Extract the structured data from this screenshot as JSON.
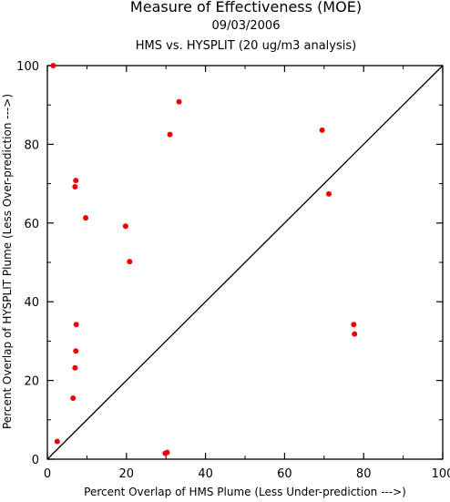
{
  "chart_data": {
    "type": "scatter",
    "title": "Measure of Effectiveness (MOE)",
    "date": "09/03/2006",
    "subtitle": "HMS vs. HYSPLIT  (20 ug/m3 analysis)",
    "xlabel": "Percent Overlap of HMS Plume (Less Under-prediction --->)",
    "ylabel": "Percent Overlap of HYSPLIT Plume (Less Over-prediction --->)",
    "xlim": [
      0,
      100
    ],
    "ylim": [
      0,
      100
    ],
    "xticks": [
      "0",
      "20",
      "40",
      "60",
      "80",
      "100"
    ],
    "yticks": [
      "0",
      "20",
      "40",
      "60",
      "80",
      "100"
    ],
    "grid": false,
    "reference_line": "y = x",
    "point_color": "#ee0000",
    "points": [
      {
        "x": 1.5,
        "y": 100
      },
      {
        "x": 2.5,
        "y": 4.5
      },
      {
        "x": 6.5,
        "y": 15.5
      },
      {
        "x": 7.0,
        "y": 23.2
      },
      {
        "x": 7.2,
        "y": 27.5
      },
      {
        "x": 7.3,
        "y": 34.2
      },
      {
        "x": 7.0,
        "y": 69.2
      },
      {
        "x": 7.2,
        "y": 70.8
      },
      {
        "x": 9.7,
        "y": 61.3
      },
      {
        "x": 19.8,
        "y": 59.2
      },
      {
        "x": 20.8,
        "y": 50.2
      },
      {
        "x": 29.8,
        "y": 1.5
      },
      {
        "x": 30.3,
        "y": 1.7
      },
      {
        "x": 31.0,
        "y": 82.5
      },
      {
        "x": 33.3,
        "y": 90.8
      },
      {
        "x": 69.5,
        "y": 83.6
      },
      {
        "x": 71.2,
        "y": 67.4
      },
      {
        "x": 77.5,
        "y": 34.2
      },
      {
        "x": 77.7,
        "y": 31.8
      }
    ]
  }
}
